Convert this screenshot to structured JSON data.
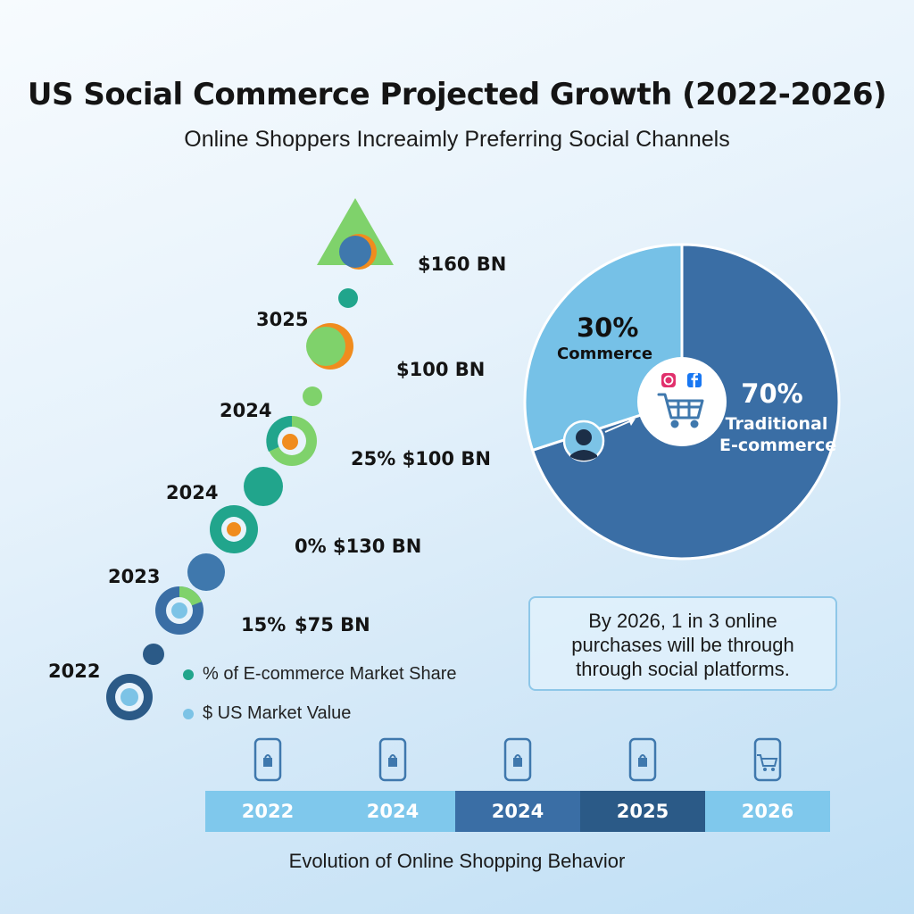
{
  "header": {
    "title": "US Social Commerce Projected Growth (2022-2026)",
    "subtitle": "Online Shoppers Increaimly Preferring Social Channels"
  },
  "colors": {
    "dark_blue": "#2b5a87",
    "mid_blue": "#3f78ad",
    "light_blue": "#7cc3e6",
    "teal": "#21a58c",
    "green": "#7fd26b",
    "orange": "#f08c1e"
  },
  "growth_labels": {
    "value_160": "$160 BN",
    "year_3025": "3025",
    "value_100": "$100 BN",
    "year_2024a": "2024",
    "value_25_100": "25% $100 BN",
    "year_2024b": "2024",
    "value_0_130": "0% $130 BN",
    "year_2023": "2023",
    "value_15_pct": "15%",
    "value_75": "$75 BN",
    "year_2022": "2022"
  },
  "legend": {
    "share_label": "% of E-commerce Market Share",
    "value_label": "$ US Market Value"
  },
  "chart_data": {
    "type": "pie",
    "slices": [
      {
        "label": "Commerce",
        "value": 30,
        "display": "30%",
        "color": "#76c1e7"
      },
      {
        "label": "Traditional E-commerce",
        "value": 70,
        "display": "70%",
        "color": "#3a6ea5"
      }
    ],
    "center_icons": [
      "shopping-cart-icon",
      "instagram-icon",
      "facebook-icon",
      "user-avatar-icon"
    ]
  },
  "pie_text": {
    "social_pct": "30%",
    "social_label": "Commerce",
    "trad_pct": "70%",
    "trad_label_1": "Traditional",
    "trad_label_2": "E-commerce"
  },
  "callout": {
    "line1": "By 2026, 1 in 3 online",
    "line2": "purchases will be through",
    "line3": "through social platforms."
  },
  "timeline": {
    "years": [
      "2022",
      "2024",
      "2024",
      "2025",
      "2026"
    ],
    "colors": [
      "#7fc8ec",
      "#7fc8ec",
      "#3a6ea5",
      "#2b5a87",
      "#7fc8ec"
    ]
  },
  "footer": {
    "caption": "Evolution of Online Shopping Behavior"
  }
}
